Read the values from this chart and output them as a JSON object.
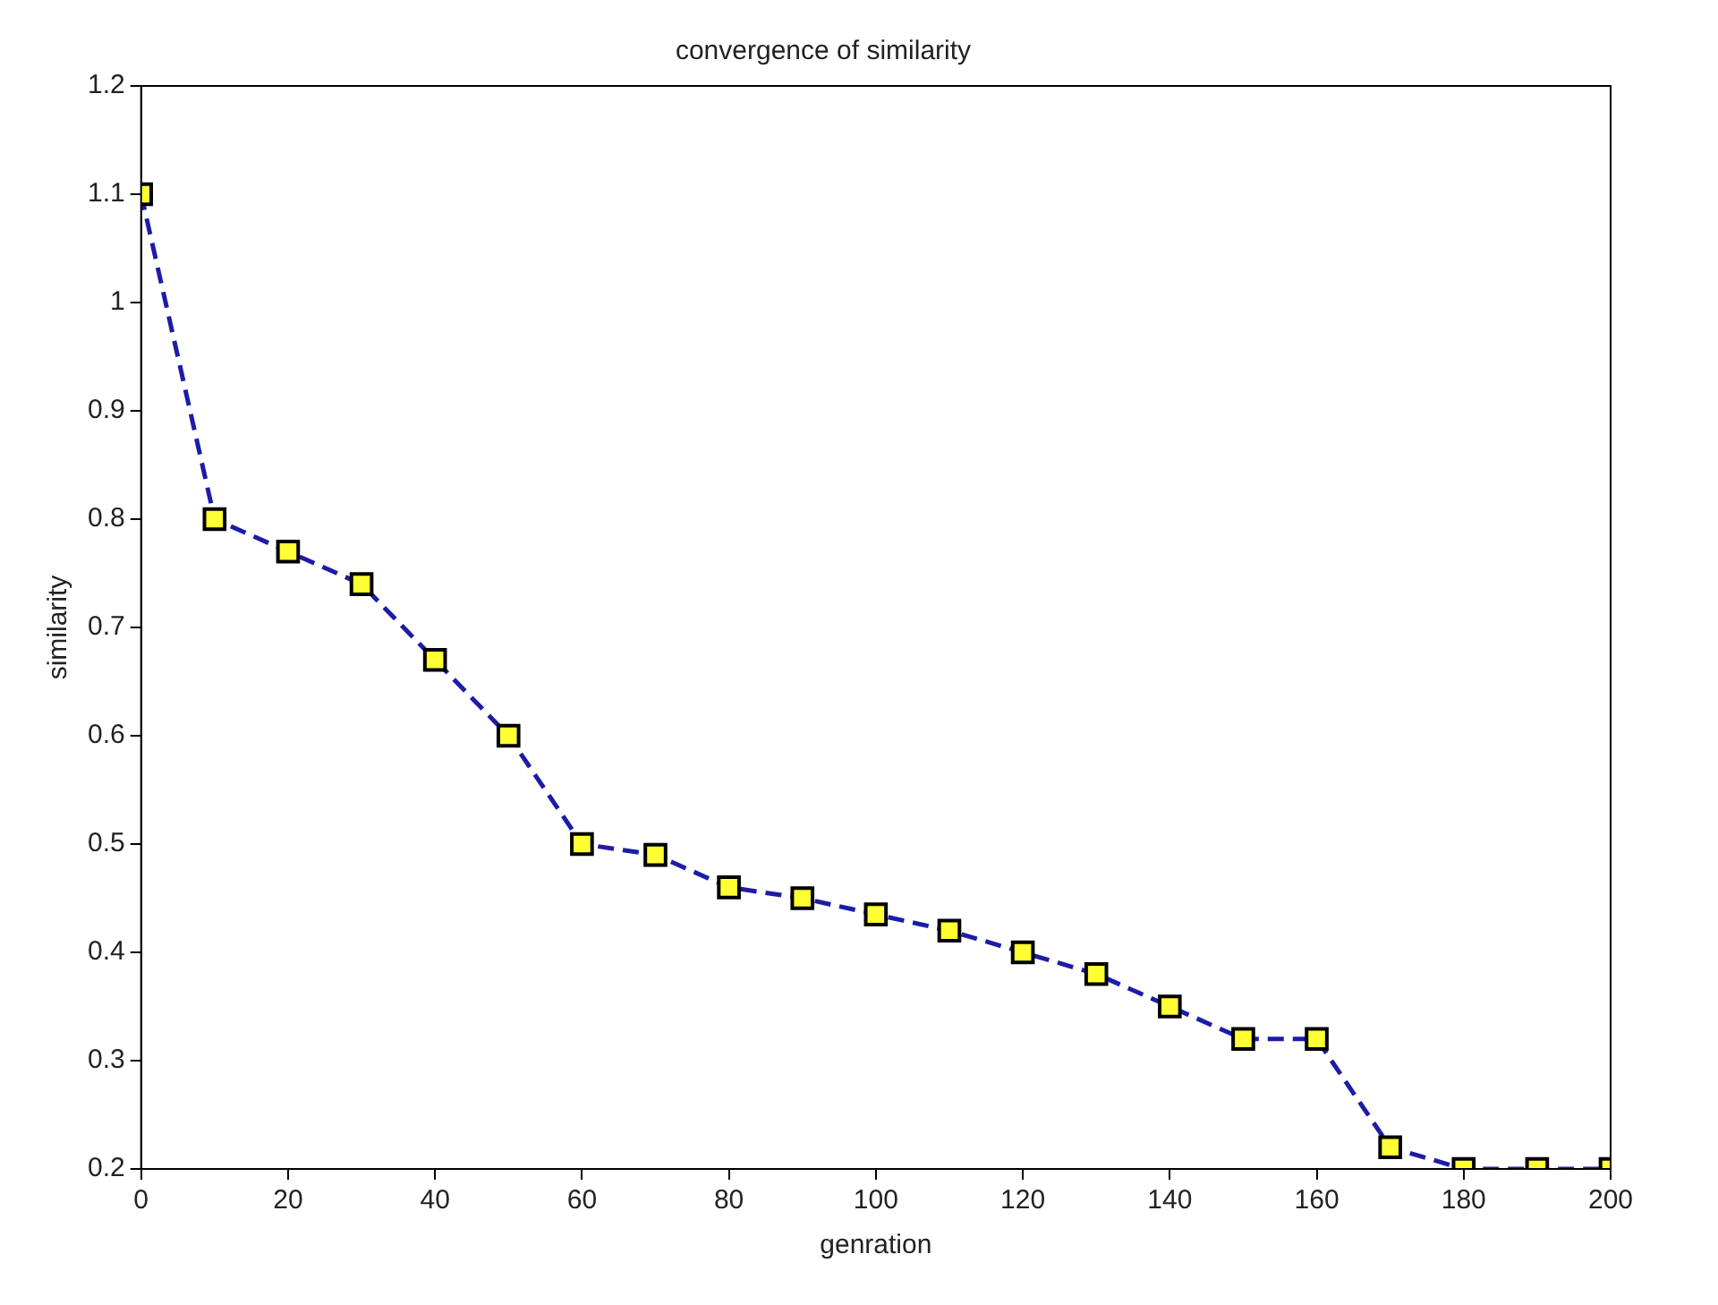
{
  "chart_data": {
    "type": "line",
    "title": "convergence of similarity",
    "xlabel": "genration",
    "ylabel": "similarity",
    "x": [
      0,
      10,
      20,
      30,
      40,
      50,
      60,
      70,
      80,
      90,
      100,
      110,
      120,
      130,
      140,
      150,
      160,
      170,
      180,
      190,
      200
    ],
    "series": [
      {
        "color": "#1c1ca8",
        "values": [
          1.1,
          0.8,
          0.77,
          0.74,
          0.67,
          0.6,
          0.5,
          0.49,
          0.46,
          0.45,
          0.435,
          0.42,
          0.4,
          0.38,
          0.35,
          0.32,
          0.32,
          0.22,
          0.2,
          0.2,
          0.2
        ]
      }
    ],
    "xlim": [
      0,
      200
    ],
    "xticks": [
      0,
      20,
      40,
      60,
      80,
      100,
      120,
      140,
      160,
      180,
      200
    ],
    "ylim": [
      0.2,
      1.2
    ],
    "yticks": [
      0.2,
      0.3,
      0.4,
      0.5,
      0.6,
      0.7,
      0.8,
      0.9,
      1,
      1.1,
      1.2
    ],
    "grid": false,
    "legend": false,
    "marker": "square",
    "line_style": "dashed"
  }
}
